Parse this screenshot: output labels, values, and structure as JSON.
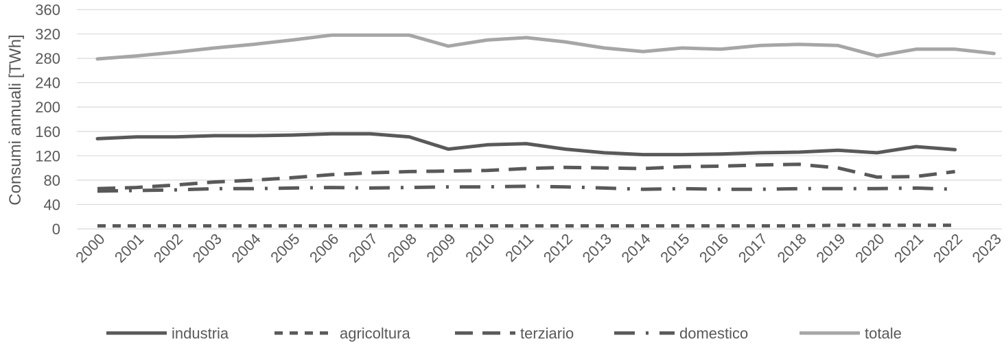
{
  "chart_data": {
    "type": "line",
    "title": "",
    "xlabel": "",
    "ylabel": "Consumi annuali [TWh]",
    "ylim": [
      0,
      360
    ],
    "yticks": [
      0,
      40,
      80,
      120,
      160,
      200,
      240,
      280,
      320,
      360
    ],
    "grid": "horizontal",
    "legend_position": "bottom",
    "x": [
      "2000",
      "2001",
      "2002",
      "2003",
      "2004",
      "2005",
      "2006",
      "2007",
      "2008",
      "2009",
      "2010",
      "2011",
      "2012",
      "2013",
      "2014",
      "2015",
      "2016",
      "2017",
      "2018",
      "2019",
      "2020",
      "2021",
      "2022",
      "2023"
    ],
    "series": [
      {
        "name": "industria",
        "color": "#595959",
        "dash": "solid",
        "values": [
          148,
          151,
          151,
          153,
          153,
          154,
          156,
          156,
          151,
          131,
          138,
          140,
          131,
          125,
          122,
          122,
          123,
          125,
          126,
          129,
          125,
          135,
          130,
          null
        ]
      },
      {
        "name": "agricoltura",
        "color": "#595959",
        "dash": "short-dash",
        "values": [
          5,
          5,
          5,
          5,
          5,
          5,
          5,
          5,
          5,
          5,
          5,
          5,
          5,
          5,
          5,
          5,
          5,
          5,
          5,
          6,
          6,
          6,
          6,
          null
        ]
      },
      {
        "name": "terziario",
        "color": "#595959",
        "dash": "long-dash",
        "values": [
          66,
          68,
          72,
          77,
          80,
          84,
          89,
          92,
          94,
          95,
          96,
          99,
          101,
          100,
          99,
          102,
          103,
          105,
          106,
          100,
          85,
          86,
          94,
          null
        ]
      },
      {
        "name": "domestico",
        "color": "#595959",
        "dash": "long-dash-dot",
        "values": [
          62,
          63,
          64,
          66,
          66,
          67,
          68,
          67,
          68,
          69,
          69,
          70,
          69,
          67,
          65,
          66,
          65,
          65,
          66,
          66,
          66,
          67,
          65,
          null
        ]
      },
      {
        "name": "totale",
        "color": "#a6a6a6",
        "dash": "solid",
        "values": [
          279,
          284,
          290,
          297,
          303,
          310,
          318,
          318,
          318,
          300,
          310,
          314,
          307,
          297,
          291,
          297,
          295,
          301,
          303,
          301,
          284,
          295,
          295,
          288
        ]
      }
    ]
  }
}
